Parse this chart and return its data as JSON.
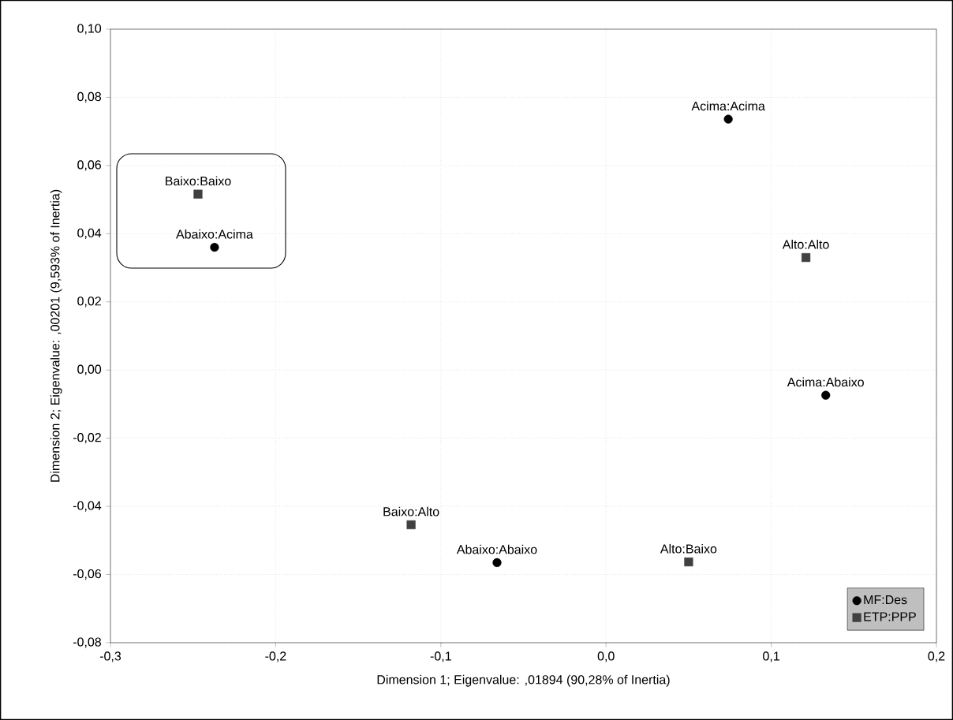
{
  "chart_data": {
    "type": "scatter",
    "xlabel": "Dimension 1; Eigenvalue: ,01894 (90,28% of Inertia)",
    "ylabel": "Dimension 2; Eigenvalue: ,00201 (9,593% of Inertia)",
    "xlim": [
      -0.3,
      0.2
    ],
    "ylim": [
      -0.08,
      0.1
    ],
    "xticks": [
      {
        "value": -0.3,
        "label": "-0,3"
      },
      {
        "value": -0.2,
        "label": "-0,2"
      },
      {
        "value": -0.1,
        "label": "-0,1"
      },
      {
        "value": 0,
        "label": "0,0"
      },
      {
        "value": 0.1,
        "label": "0,1"
      },
      {
        "value": 0.2,
        "label": "0,2"
      }
    ],
    "yticks": [
      {
        "value": -0.08,
        "label": "-0,08"
      },
      {
        "value": -0.06,
        "label": "-0,06"
      },
      {
        "value": -0.04,
        "label": "-0,04"
      },
      {
        "value": -0.02,
        "label": "-0,02"
      },
      {
        "value": 0,
        "label": "0,00"
      },
      {
        "value": 0.02,
        "label": "0,02"
      },
      {
        "value": 0.04,
        "label": "0,04"
      },
      {
        "value": 0.06,
        "label": "0,06"
      },
      {
        "value": 0.08,
        "label": "0,08"
      },
      {
        "value": 0.1,
        "label": "0,10"
      }
    ],
    "grid": true,
    "legend": "bottom right",
    "series": [
      {
        "name": "MF:Des",
        "color": "#000000",
        "marker": "circle",
        "x": [
          0.074,
          -0.237,
          0.133,
          -0.066
        ],
        "values": [
          0.0736,
          0.036,
          -0.0074,
          -0.0565
        ]
      },
      {
        "name": "ETP:PPP",
        "color": "#404040",
        "marker": "square",
        "x": [
          -0.247,
          0.121,
          -0.118,
          0.05
        ],
        "values": [
          0.0516,
          0.033,
          -0.0454,
          -0.0563
        ]
      }
    ],
    "annotations": [
      {
        "text": "Acima:Acima",
        "x": 0.074,
        "y": 0.0736
      },
      {
        "text": "Abaixo:Acima",
        "x": -0.237,
        "y": 0.036
      },
      {
        "text": "Acima:Abaixo",
        "x": 0.133,
        "y": -0.0074
      },
      {
        "text": "Abaixo:Abaixo",
        "x": -0.066,
        "y": -0.0565
      },
      {
        "text": "Baixo:Baixo",
        "x": -0.247,
        "y": 0.0516
      },
      {
        "text": "Alto:Alto",
        "x": 0.121,
        "y": 0.033
      },
      {
        "text": "Baixo:Alto",
        "x": -0.118,
        "y": -0.0454
      },
      {
        "text": "Alto:Baixo",
        "x": 0.05,
        "y": -0.0563
      }
    ]
  }
}
